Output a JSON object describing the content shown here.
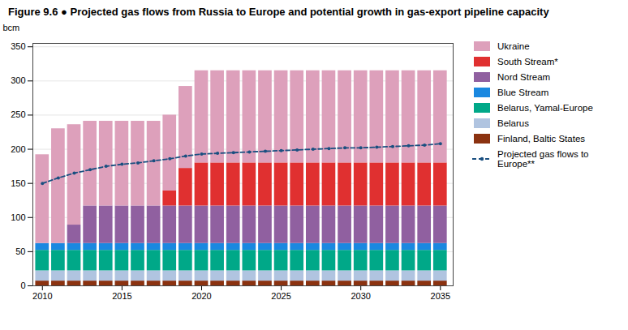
{
  "chart_data": {
    "type": "bar",
    "stacked": true,
    "title": "Figure 9.6 ● Projected gas flows from Russia to Europe and potential growth in gas-export pipeline capacity",
    "ylabel": "bcm",
    "x": [
      2010,
      2011,
      2012,
      2013,
      2014,
      2015,
      2016,
      2017,
      2018,
      2019,
      2020,
      2021,
      2022,
      2023,
      2024,
      2025,
      2026,
      2027,
      2028,
      2029,
      2030,
      2031,
      2032,
      2033,
      2034,
      2035
    ],
    "series": [
      {
        "name": "Finland, Baltic States",
        "type": "bar",
        "color": "#8b3210",
        "values": [
          7,
          7,
          7,
          7,
          7,
          7,
          7,
          7,
          7,
          7,
          7,
          7,
          7,
          7,
          7,
          7,
          7,
          7,
          7,
          7,
          7,
          7,
          7,
          7,
          7,
          7
        ]
      },
      {
        "name": "Belarus",
        "type": "bar",
        "color": "#b0c4e0",
        "values": [
          15,
          15,
          15,
          15,
          15,
          15,
          15,
          15,
          15,
          15,
          15,
          15,
          15,
          15,
          15,
          15,
          15,
          15,
          15,
          15,
          15,
          15,
          15,
          15,
          15,
          15
        ]
      },
      {
        "name": "Belarus, Yamal-Europe",
        "type": "bar",
        "color": "#00a888",
        "values": [
          30,
          30,
          30,
          30,
          30,
          30,
          30,
          30,
          30,
          30,
          30,
          30,
          30,
          30,
          30,
          30,
          30,
          30,
          30,
          30,
          30,
          30,
          30,
          30,
          30,
          30
        ]
      },
      {
        "name": "Blue Stream",
        "type": "bar",
        "color": "#1a88e0",
        "values": [
          10,
          10,
          10,
          10,
          10,
          10,
          10,
          10,
          10,
          10,
          10,
          10,
          10,
          10,
          10,
          10,
          10,
          10,
          10,
          10,
          10,
          10,
          10,
          10,
          10,
          10
        ]
      },
      {
        "name": "Nord Stream",
        "type": "bar",
        "color": "#9060a0",
        "values": [
          0,
          0,
          27,
          55,
          55,
          55,
          55,
          55,
          55,
          55,
          55,
          55,
          55,
          55,
          55,
          55,
          55,
          55,
          55,
          55,
          55,
          55,
          55,
          55,
          55,
          55
        ]
      },
      {
        "name": "South Stream*",
        "type": "bar",
        "color": "#e03030",
        "values": [
          0,
          0,
          0,
          0,
          0,
          0,
          0,
          0,
          22,
          55,
          63,
          63,
          63,
          63,
          63,
          63,
          63,
          63,
          63,
          63,
          63,
          63,
          63,
          63,
          63,
          63
        ]
      },
      {
        "name": "Ukraine",
        "type": "bar",
        "color": "#dda0bb",
        "values": [
          130,
          168,
          147,
          124,
          124,
          124,
          124,
          124,
          111,
          120,
          135,
          135,
          135,
          135,
          135,
          135,
          135,
          135,
          135,
          135,
          135,
          135,
          135,
          135,
          135,
          135
        ]
      },
      {
        "name": "Projected gas flows to Europe**",
        "type": "line",
        "color": "#1a4f80",
        "line_style": "dashed",
        "marker": "circle",
        "values": [
          150,
          158,
          165,
          170,
          175,
          178,
          180,
          183,
          186,
          190,
          193,
          194,
          195,
          196,
          197,
          198,
          199,
          200,
          201,
          202,
          202,
          203,
          204,
          205,
          206,
          208
        ]
      }
    ],
    "xlim": [
      2009.4,
      2035.8
    ],
    "xticks": [
      2010,
      2015,
      2020,
      2025,
      2030,
      2035
    ],
    "ylim": [
      0,
      355
    ],
    "yticks": [
      0,
      50,
      100,
      150,
      200,
      250,
      300,
      350
    ],
    "grid": true,
    "legend": "right"
  }
}
